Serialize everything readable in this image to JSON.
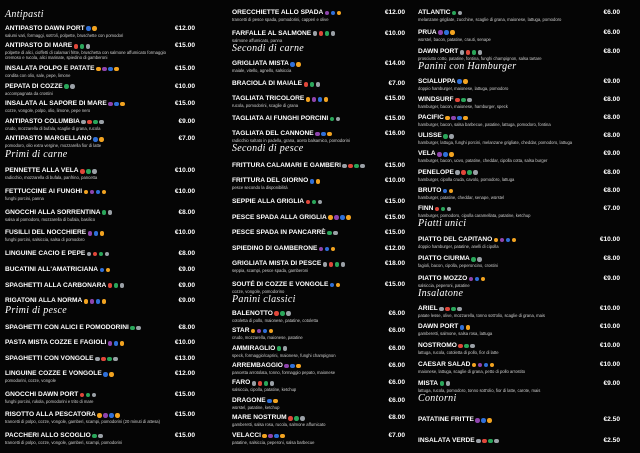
{
  "columns": [
    {
      "sections": [
        {
          "title": "Antipasti",
          "items": [
            {
              "name": "ANTIPASTO DAWN PORT",
              "price": "€12.00",
              "desc": "salumi vari, formaggi, sott'oli, polpette, bruschette con pomodori"
            },
            {
              "name": "ANTIPASTO DI MARE",
              "price": "€15.00",
              "desc": "polpette di alici, cioffetti di calamari fritte, bruschetta con salmone affumicato formaggio cremoso e rucola, alici marinate, spiedino di gamberoni"
            },
            {
              "name": "INSALATA POLPO E PATATE",
              "price": "€15.00",
              "desc": "condita con olio, sale, pepe, limone"
            },
            {
              "name": "PEPATA DI COZZE",
              "price": "€10.00",
              "desc": "accompagnata da crostini"
            },
            {
              "name": "INSALATA AL SAPORE DI MARE",
              "price": "€15.00",
              "desc": "cozze, vongole, polpo, olio, limone, pepe nero"
            },
            {
              "name": "ANTIPASTO COLUMBIA",
              "price": "€9.00",
              "desc": "crudo, mozzarella di bufala, scaglie di grana, rucola"
            },
            {
              "name": "ANTIPASTO MARGELLANO",
              "price": "€7.00",
              "desc": "pomodoro, olio extra vergine, mozzarella fior di latte"
            }
          ]
        },
        {
          "title": "Primi di carne",
          "items": [
            {
              "name": "PENNETTE ALLA VELA",
              "price": "€10.00",
              "desc": "radicchio, mozzarella di bufala, panfrino, pancetta"
            },
            {
              "name": "FETTUCCINE AI FUNGHI",
              "price": "€10.00",
              "desc": "funghi porcini, panna"
            },
            {
              "name": "GNOCCHI ALLA SORRENTINA",
              "price": "€8.00",
              "desc": "salsa al pomodoro, mozzarella di bufala, basilico"
            },
            {
              "name": "FUSILLI DEL NOCCHIERE",
              "price": "€10.00",
              "desc": "funghi porcini, salsiccia, salsa di pomodoro"
            },
            {
              "name": "LINGUINE CACIO E PEPE",
              "price": "€8.00"
            },
            {
              "name": "BUCATINI ALL'AMATRICIANA",
              "price": "€9.00"
            },
            {
              "name": "SPAGHETTI ALLA CARBONARA",
              "price": "€9.00"
            },
            {
              "name": "RIGATONI ALLA NORMA",
              "price": "€9.00"
            }
          ]
        },
        {
          "title": "Primi di pesce",
          "items": [
            {
              "name": "SPAGHETTI CON ALICI E POMODORINI",
              "price": "€8.00"
            },
            {
              "name": "PASTA MISTA COZZE E FAGIOLI",
              "price": "€10.00"
            },
            {
              "name": "SPAGHETTI CON VONGOLE",
              "price": "€13.00"
            },
            {
              "name": "LINGUINE COZZE E VONGOLE",
              "price": "€12.00",
              "desc": "pomodorini, cozze, vongole"
            },
            {
              "name": "GNOCCHI DAWN PORT",
              "price": "€15.00",
              "desc": "funghi porcini, rukola, pomodorini e trito di mare"
            },
            {
              "name": "RISOTTO ALLA PESCATORA",
              "price": "€15.00",
              "desc": "trancetti di polpo, cozze, vongole, gamberi, scampi, pomodorini (20 minuti di attesa)"
            },
            {
              "name": "PACCHERI ALLO SCOGLIO",
              "price": "€15.00",
              "desc": "trancetti di polpo, cozze, vongole, gamberi, scampi, pomodorini"
            }
          ]
        }
      ]
    },
    {
      "sections": [
        {
          "items": [
            {
              "name": "ORECCHIETTE ALLO SPADA",
              "price": "€12.00",
              "desc": "trancetti di pesce spada, pomodorini, capperi e olive"
            },
            {
              "name": "FARFALLE AL SALMONE",
              "price": "€10.00",
              "desc": "salmone affumicato, panna"
            }
          ]
        },
        {
          "title": "Secondi di carne",
          "items": [
            {
              "name": "GRIGLIATA MISTA",
              "price": "€14.00",
              "desc": "maiale, vitello, agnello, salsiccia"
            },
            {
              "name": "BRACIOLA DI MAIALE",
              "price": "€7.00"
            },
            {
              "name": "TAGLIATA TRICOLORE",
              "price": "€15.00",
              "desc": "rucola, pomodorini, scaglie di grana"
            },
            {
              "name": "TAGLIATA AI FUNGHI PORCINI",
              "price": "€15.00"
            },
            {
              "name": "TAGLIATA DEL CANNONE",
              "price": "€16.00",
              "desc": "radicchio saltato in padella, grana, aceto balsamico, pomodorini"
            }
          ]
        },
        {
          "title": "Secondi di pesce",
          "items": [
            {
              "name": "FRITTURA CALAMARI E GAMBERI",
              "price": "€15.00"
            },
            {
              "name": "FRITTURA DEL GIORNO",
              "price": "€10.00",
              "desc": "pesce secondo la disponibilità"
            },
            {
              "name": "SEPPIE ALLA GRIGLIA",
              "price": "€15.00"
            },
            {
              "name": "PESCE SPADA ALLA GRIGLIA",
              "price": "€15.00"
            },
            {
              "name": "PESCE SPADA IN PANCARRÈ",
              "price": "€15.00"
            },
            {
              "name": "SPIEDINO DI GAMBERONE",
              "price": "€12.00"
            },
            {
              "name": "GRIGLIATA MISTA DI PESCE",
              "price": "€18.00",
              "desc": "seppia, scampi, pesce spada, gamberoni"
            },
            {
              "name": "SOUTÉ DI COZZE E VONGOLE",
              "price": "€15.00",
              "desc": "cozze, vongole, pomodorino"
            }
          ]
        },
        {
          "title": "Panini classici",
          "items": [
            {
              "name": "BALENOTTO",
              "price": "€6.00",
              "desc": "cotoletta di pollo, maionese, patatine, cotoletta"
            },
            {
              "name": "STAR",
              "price": "€6.00",
              "desc": "crudo, mozzarella, maionese, patatine"
            },
            {
              "name": "AMMIRAGLIO",
              "price": "€6.00",
              "desc": "speck, formaggio/caprini, maionese, funghi champignon"
            },
            {
              "name": "ARREMBAGGIO",
              "price": "€6.00",
              "desc": "pancetta arrotolata, tonno, formaggio pepato, maionese"
            },
            {
              "name": "FARO",
              "price": "€6.00",
              "desc": "salsiccia, cipolla, patatine, ketchup"
            },
            {
              "name": "DRAGONE",
              "price": "€6.00",
              "desc": "würstel, patatine, ketchup"
            },
            {
              "name": "MARE NOSTRUM",
              "price": "€8.00",
              "desc": "gamberetti, salsa rosa, rucola, salmone affumicato"
            },
            {
              "name": "VELACCI",
              "price": "€7.00",
              "desc": "patatine, salsiccia, peperoni, salsa barbecue"
            }
          ]
        }
      ]
    },
    {
      "sections": [
        {
          "items": [
            {
              "name": "ATLANTIC",
              "price": "€6.00",
              "desc": "melanzane grigliate, zucchine, scaglie di grana, maionese, lattuga, pomodoro"
            },
            {
              "name": "PRUA",
              "price": "€6.00",
              "desc": "würstel, bacon, patatine, crauti, senape"
            },
            {
              "name": "DAWN PORT",
              "price": "€8.00",
              "desc": "prosciutto cotto, patatine, fontina, funghi champignon, salsa tartare"
            }
          ]
        },
        {
          "title": "Panini con Hamburger",
          "items": [
            {
              "name": "SCIALUPPA",
              "price": "€9.00",
              "desc": "doppio hamburger, maionese, lattuga, pomodoro"
            },
            {
              "name": "WINDSURF",
              "price": "€8.00",
              "desc": "hamburger, bacon, maionese, hamburger, speck"
            },
            {
              "name": "PACIFIC",
              "price": "€8.00",
              "desc": "hamburger, bacon, salsa barbecue, patatine, lattuga, pomodoro, fontina"
            },
            {
              "name": "ULISSE",
              "price": "€8.00",
              "desc": "hamburger, lattuga, funghi porcini, melanzane grigliate, cheddar, pomodoro, lattuga"
            },
            {
              "name": "VELA",
              "price": "€9.00",
              "desc": "hamburger, bacon, uovo, patatine, cheddar, cipolla cotta, salsa burger"
            },
            {
              "name": "PENELOPE",
              "price": "€8.00",
              "desc": "hamburger, cipolla cruda, cavolo, pomodoro, lattuga"
            },
            {
              "name": "BRUTO",
              "price": "€8.00",
              "desc": "hamburger, patatine, cheddar, senape, würstel"
            },
            {
              "name": "FINN",
              "price": "€7.00",
              "desc": "hamburger, pomodoro, cipolla caramellata, patatine, ketchup"
            }
          ]
        },
        {
          "title": "Piatti unici",
          "items": [
            {
              "name": "PIATTO DEL CAPITANO",
              "price": "€10.00",
              "desc": "doppio hamburger, patatine, anelli di cipolla"
            },
            {
              "name": "PIATTO CIURMA",
              "price": "€8.00",
              "desc": "fagioli, bacon, cipolla, peperoncino, crostini"
            },
            {
              "name": "PIATTO MOZZO",
              "price": "€9.00",
              "desc": "salsiccia, peperoni, patatine"
            }
          ]
        },
        {
          "title": "Insalatone",
          "items": [
            {
              "name": "ARIEL",
              "price": "€10.00",
              "desc": "patate lesse, olive, mozzarella, tonno sott'olio, scaglie di grana, mais"
            },
            {
              "name": "DAWN PORT",
              "price": "€10.00",
              "desc": "gamberetti, salmone, salsa rosa, lattuga"
            },
            {
              "name": "NOSTROMO",
              "price": "€10.00",
              "desc": "lattuga, rucola, cotoletta di pollo, fior di latte"
            },
            {
              "name": "CAESAR SALAD",
              "price": "€10.00",
              "desc": "maionese, lattuga, scaglie di grana, petto di pollo arrostito"
            },
            {
              "name": "MISTA",
              "price": "€9.00",
              "desc": "lattuga, rucola, pomodoro, tonno sott'olio, fior di latte, carote, mais"
            }
          ]
        },
        {
          "title": "Contorni",
          "items": [
            {
              "name": "PATATINE FRITTE",
              "price": "€2.50"
            },
            {
              "name": "INSALATA VERDE",
              "price": "€2.50"
            }
          ]
        }
      ]
    }
  ]
}
